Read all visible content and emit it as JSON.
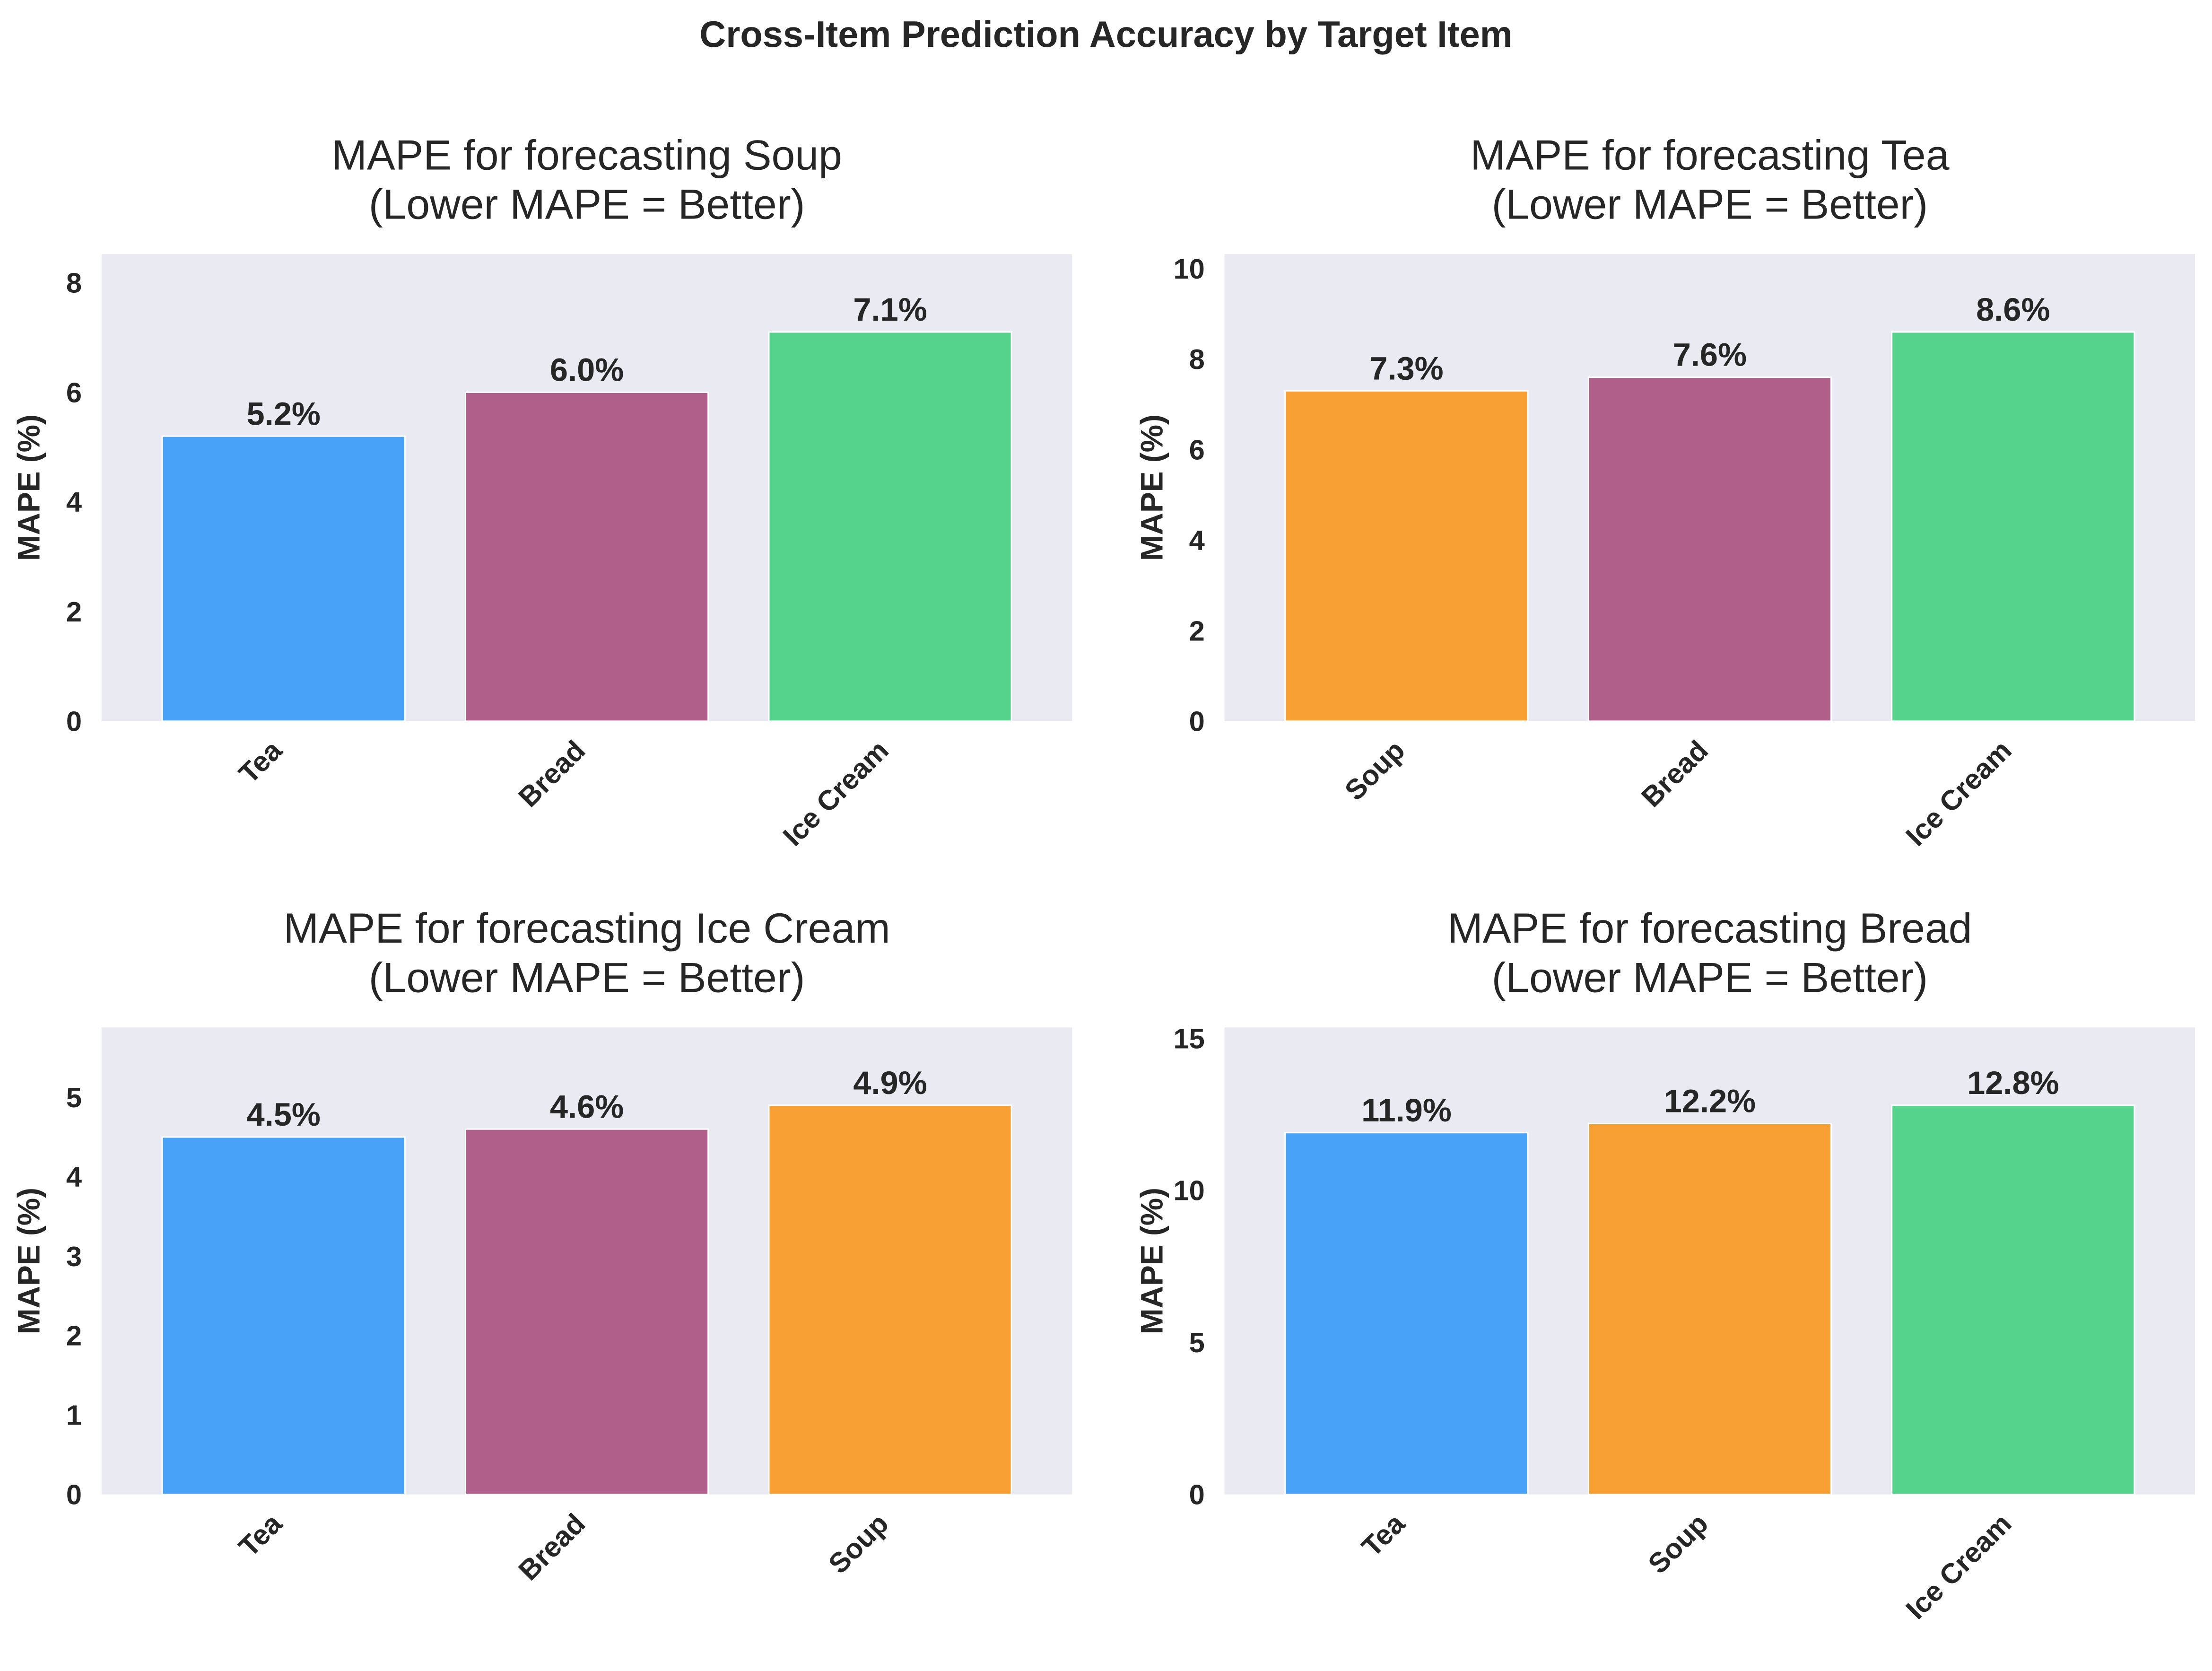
{
  "suptitle": "Cross-Item Prediction Accuracy by Target Item",
  "colors": {
    "Tea": "#48a3f8",
    "Bread": "#b05e8a",
    "Ice Cream": "#55d28c",
    "Soup": "#f8a034",
    "axes_bg": "#eaeaf2"
  },
  "chart_data": [
    {
      "type": "bar",
      "title": "MAPE for forecasting Soup\n(Lower MAPE = Better)",
      "title_lines": [
        "MAPE for forecasting Soup",
        "(Lower MAPE = Better)"
      ],
      "ylabel": "MAPE (%)",
      "categories": [
        "Tea",
        "Bread",
        "Ice Cream"
      ],
      "values": [
        5.2,
        6.0,
        7.1
      ],
      "labels": [
        "5.2%",
        "6.0%",
        "7.1%"
      ],
      "ylim": [
        0,
        8.52
      ],
      "yticks": [
        0,
        2,
        4,
        6,
        8
      ],
      "grid": false
    },
    {
      "type": "bar",
      "title": "MAPE for forecasting Tea\n(Lower MAPE = Better)",
      "title_lines": [
        "MAPE for forecasting Tea",
        "(Lower MAPE = Better)"
      ],
      "ylabel": "MAPE (%)",
      "categories": [
        "Soup",
        "Bread",
        "Ice Cream"
      ],
      "values": [
        7.3,
        7.6,
        8.6
      ],
      "labels": [
        "7.3%",
        "7.6%",
        "8.6%"
      ],
      "ylim": [
        0,
        10.32
      ],
      "yticks": [
        0,
        2,
        4,
        6,
        8,
        10
      ],
      "grid": false
    },
    {
      "type": "bar",
      "title": "MAPE for forecasting Ice Cream\n(Lower MAPE = Better)",
      "title_lines": [
        "MAPE for forecasting Ice Cream",
        "(Lower MAPE = Better)"
      ],
      "ylabel": "MAPE (%)",
      "categories": [
        "Tea",
        "Bread",
        "Soup"
      ],
      "values": [
        4.5,
        4.6,
        4.9
      ],
      "labels": [
        "4.5%",
        "4.6%",
        "4.9%"
      ],
      "ylim": [
        0,
        5.88
      ],
      "yticks": [
        0,
        1,
        2,
        3,
        4,
        5
      ],
      "grid": false
    },
    {
      "type": "bar",
      "title": "MAPE for forecasting Bread\n(Lower MAPE = Better)",
      "title_lines": [
        "MAPE for forecasting Bread",
        "(Lower MAPE = Better)"
      ],
      "ylabel": "MAPE (%)",
      "categories": [
        "Tea",
        "Soup",
        "Ice Cream"
      ],
      "values": [
        11.9,
        12.2,
        12.8
      ],
      "labels": [
        "11.9%",
        "12.2%",
        "12.8%"
      ],
      "ylim": [
        0,
        15.36
      ],
      "yticks": [
        0,
        5,
        10,
        15
      ],
      "grid": false
    }
  ]
}
